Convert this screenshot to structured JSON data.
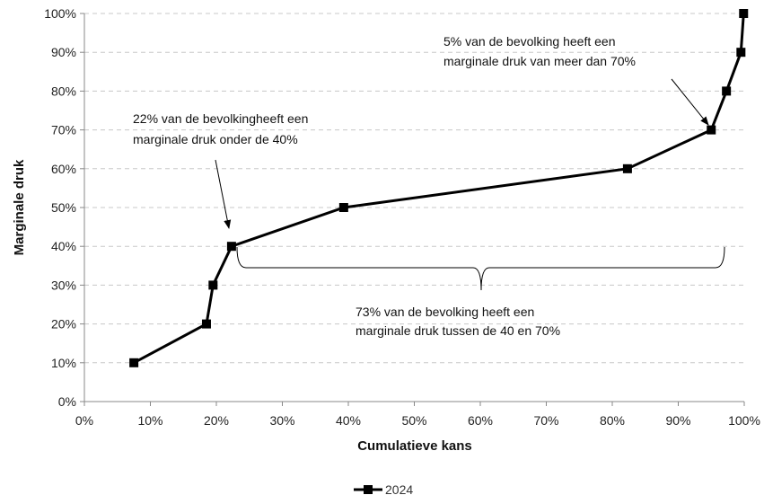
{
  "chart_data": {
    "type": "line",
    "xlabel": "Cumulatieve kans",
    "ylabel": "Marginale druk",
    "xlim": [
      0,
      100
    ],
    "ylim": [
      0,
      100
    ],
    "x_ticks": [
      "0%",
      "10%",
      "20%",
      "30%",
      "40%",
      "50%",
      "60%",
      "70%",
      "80%",
      "90%",
      "100%"
    ],
    "y_ticks": [
      "0%",
      "10%",
      "20%",
      "30%",
      "40%",
      "50%",
      "60%",
      "70%",
      "80%",
      "90%",
      "100%"
    ],
    "grid": "horizontal dashed",
    "legend_position": "bottom",
    "series": [
      {
        "name": "2024",
        "color": "#000000",
        "marker": "square",
        "x": [
          7.5,
          18.5,
          19.5,
          22.3,
          39.3,
          82.3,
          95.0,
          97.3,
          99.5,
          99.9
        ],
        "y": [
          10,
          20,
          30,
          40,
          50,
          60,
          70,
          80,
          90,
          100
        ]
      }
    ],
    "annotations": [
      {
        "lines": [
          "22% van de bevolkingheeft een",
          "marginale druk onder de 40%"
        ]
      },
      {
        "lines": [
          "5% van de bevolking heeft een",
          "marginale druk van meer dan 70%"
        ]
      },
      {
        "lines": [
          "73% van de bevolking heeft een",
          "marginale druk tussen de 40 en 70%"
        ]
      }
    ]
  }
}
